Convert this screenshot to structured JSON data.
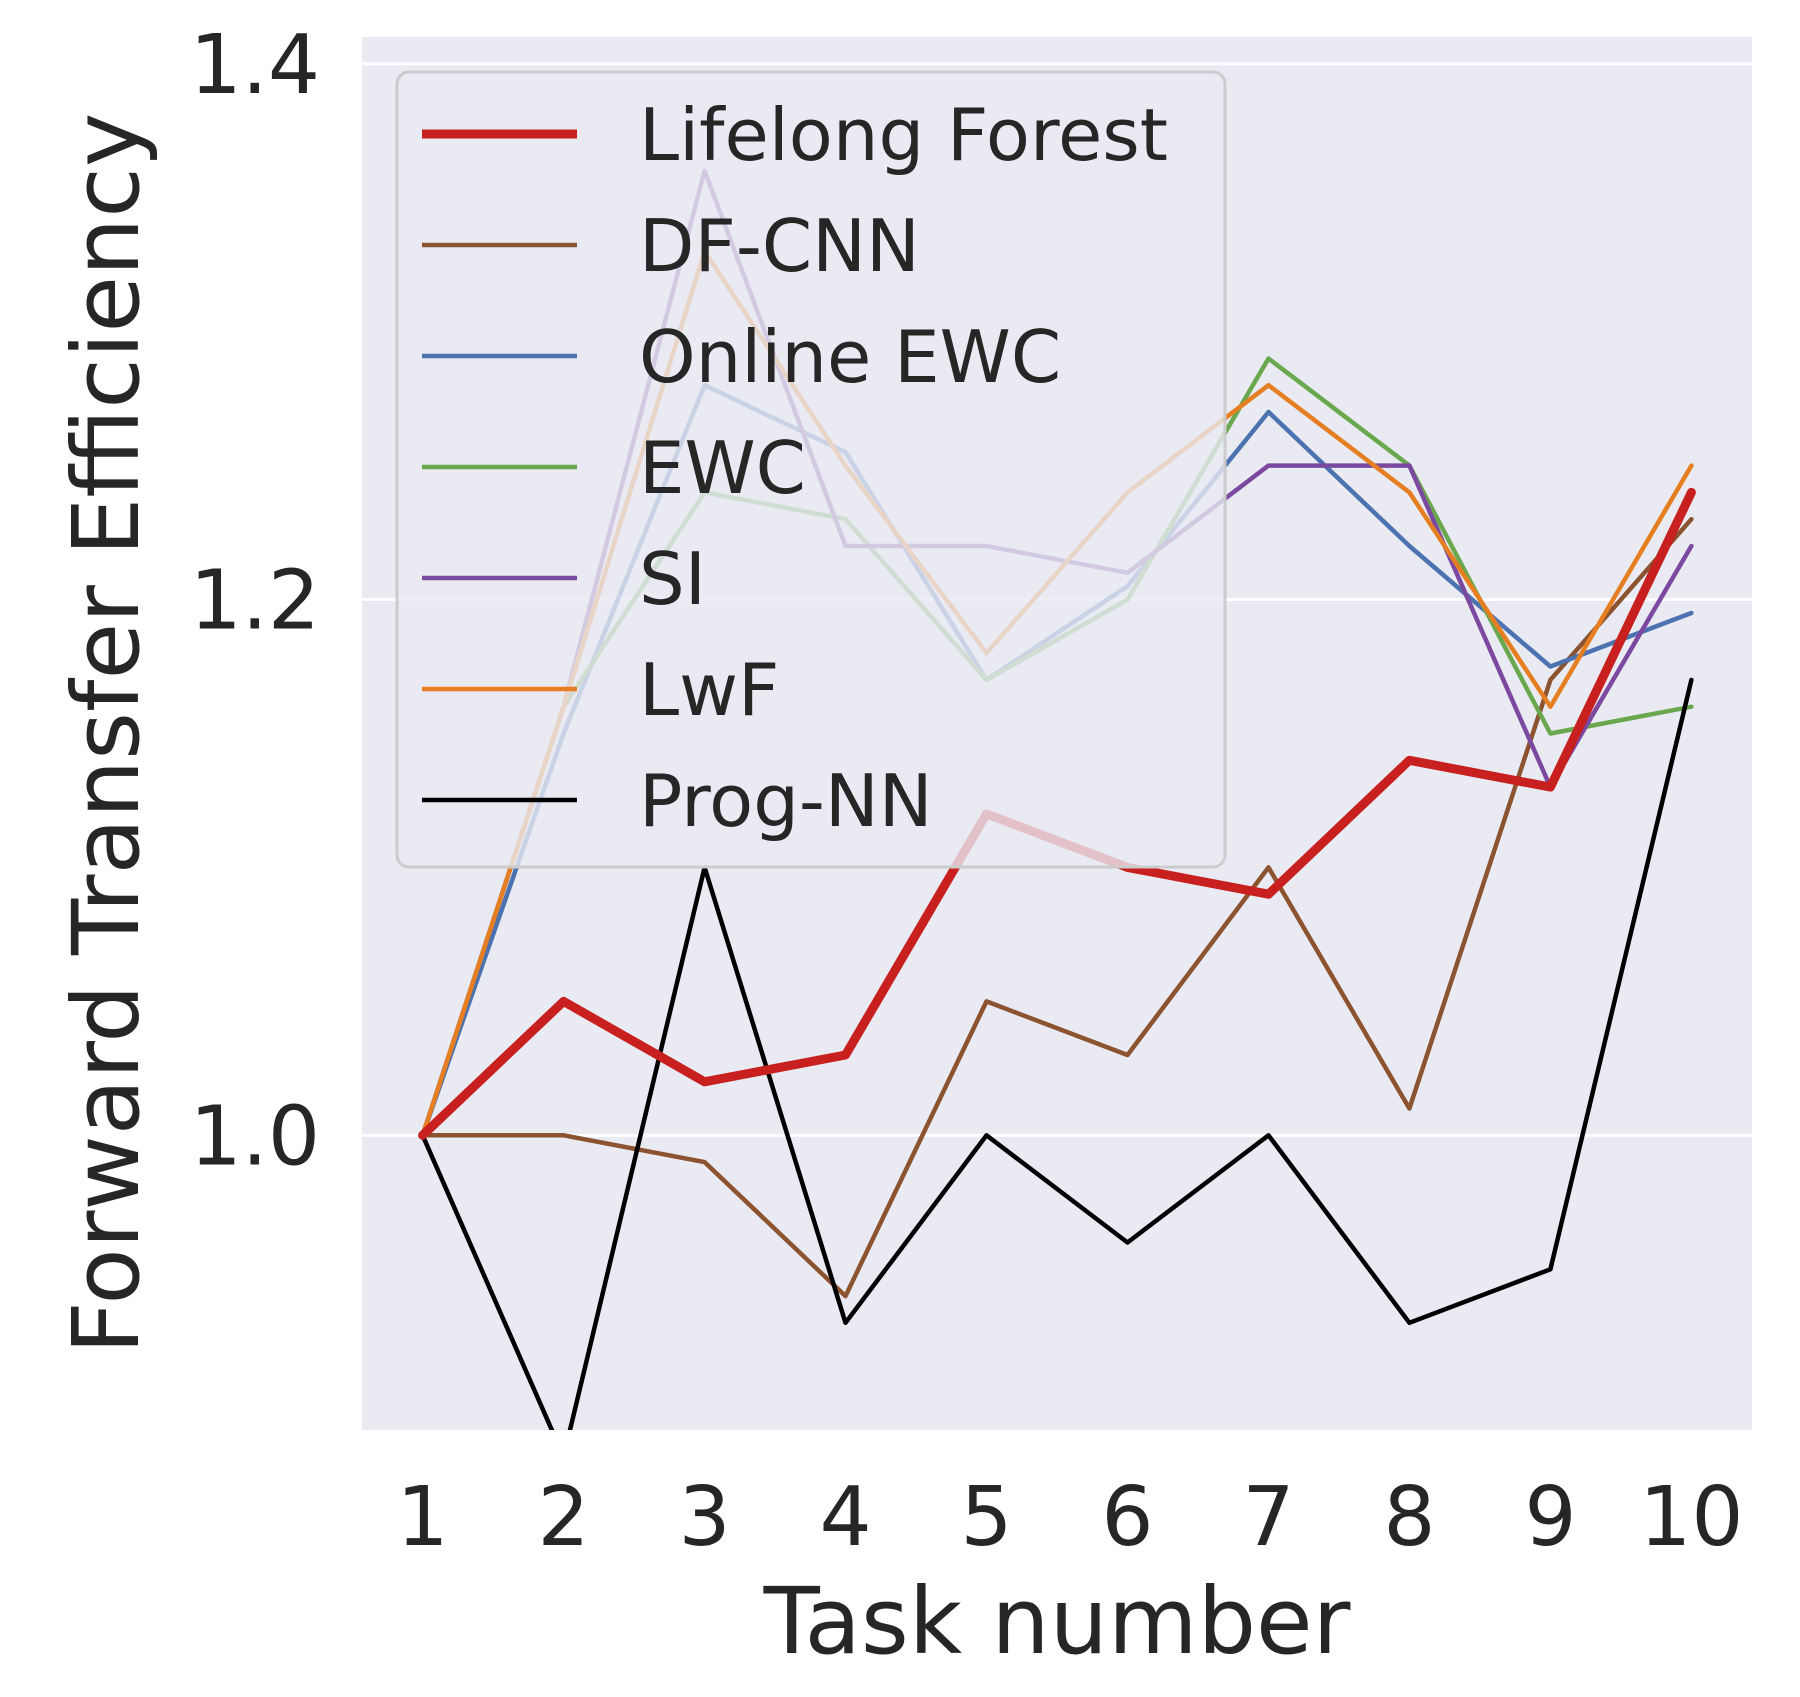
{
  "chart_data": {
    "type": "line",
    "title": "",
    "xlabel": "Task number",
    "ylabel": "Forward Transfer Efficiency",
    "x": [
      1,
      2,
      3,
      4,
      5,
      6,
      7,
      8,
      9,
      10
    ],
    "x_tick_labels": [
      "1",
      "2",
      "3",
      "4",
      "5",
      "6",
      "7",
      "8",
      "9",
      "10"
    ],
    "y_ticks": [
      1.0,
      1.2,
      1.4
    ],
    "y_tick_labels": [
      "1.0",
      "1.2",
      "1.4"
    ],
    "xlim": [
      0.57,
      10.43
    ],
    "ylim": [
      0.89,
      1.41
    ],
    "grid": true,
    "legend_position": "upper-left",
    "background_color": "#eaeaf2",
    "series": [
      {
        "name": "Lifelong Forest",
        "color": "#c8201f",
        "emphasis": true,
        "values": [
          1.0,
          1.05,
          1.02,
          1.03,
          1.12,
          1.1,
          1.09,
          1.14,
          1.13,
          1.24
        ]
      },
      {
        "name": "DF-CNN",
        "color": "#8b5330",
        "values": [
          1.0,
          1.0,
          0.99,
          0.94,
          1.05,
          1.03,
          1.1,
          1.01,
          1.17,
          1.23
        ]
      },
      {
        "name": "Online EWC",
        "color": "#4c72b0",
        "values": [
          1.0,
          1.15,
          1.28,
          1.255,
          1.17,
          1.205,
          1.27,
          1.22,
          1.175,
          1.195
        ]
      },
      {
        "name": "EWC",
        "color": "#6aa84f",
        "values": [
          1.0,
          1.16,
          1.24,
          1.23,
          1.17,
          1.2,
          1.29,
          1.25,
          1.15,
          1.16
        ]
      },
      {
        "name": "SI",
        "color": "#7b4aa0",
        "values": [
          1.0,
          1.16,
          1.36,
          1.22,
          1.22,
          1.21,
          1.25,
          1.25,
          1.13,
          1.22
        ]
      },
      {
        "name": "LwF",
        "color": "#e67e22",
        "values": [
          1.0,
          1.16,
          1.33,
          1.25,
          1.18,
          1.24,
          1.28,
          1.24,
          1.16,
          1.25
        ]
      },
      {
        "name": "Prog-NN",
        "color": "#000000",
        "values": [
          1.0,
          0.88,
          1.1,
          0.93,
          1.0,
          0.96,
          1.0,
          0.93,
          0.95,
          1.17
        ]
      }
    ]
  }
}
